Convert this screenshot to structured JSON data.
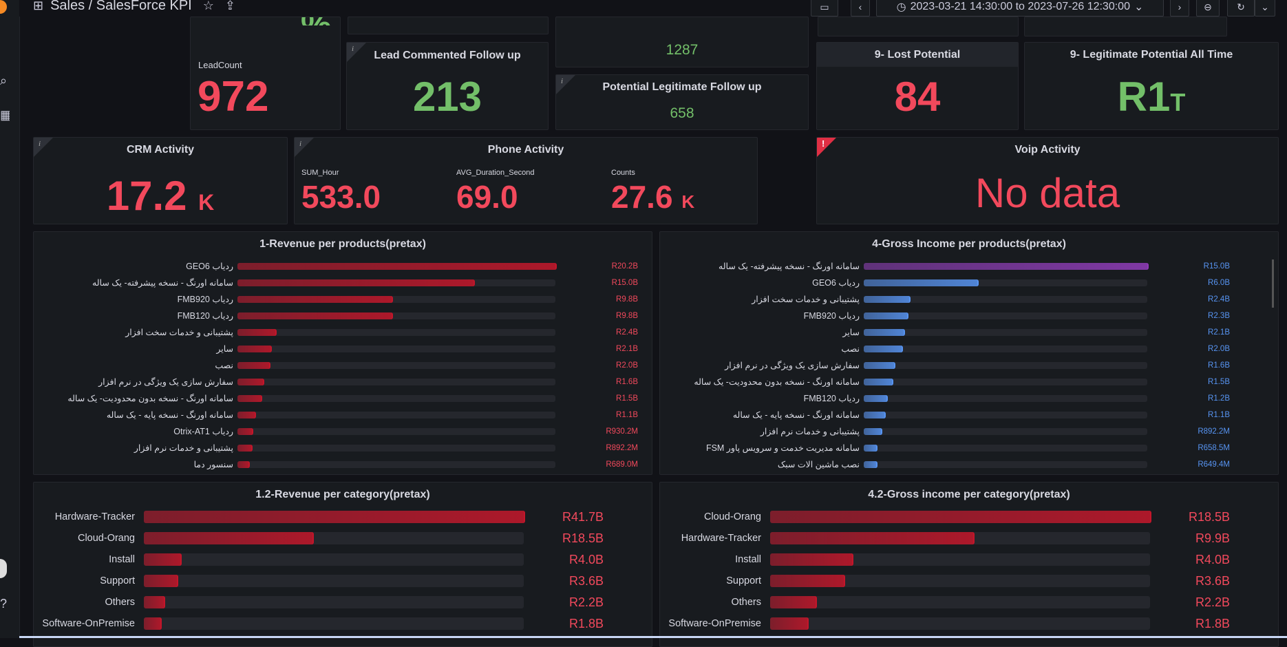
{
  "nav": {
    "breadcrumb": "Sales / SalesForce KPI",
    "time_range": "2023-03-21 14:30:00 to 2023-07-26 12:30:00"
  },
  "colors": {
    "red": "#f2495c",
    "green": "#73bf69",
    "purple": "#8f3bb8",
    "blue": "#5794f2",
    "bar_red": "#c4162a"
  },
  "panels": {
    "lead_count": {
      "label": "LeadCount",
      "value": "972"
    },
    "lead_commented": {
      "title": "Lead Commented Follow up",
      "value": "213"
    },
    "top_small": {
      "value": "1287"
    },
    "potential_legit": {
      "title": "Potential Legitimate Follow up",
      "value": "658"
    },
    "lost_potential": {
      "title": "9- Lost Potential",
      "value": "84"
    },
    "legit_all_time": {
      "title": "9- Legitimate Potential All Time",
      "value": "R1",
      "unit": "T"
    },
    "crm": {
      "title": "CRM Activity",
      "value": "17.2",
      "unit": "K"
    },
    "phone": {
      "title": "Phone Activity",
      "stats": [
        {
          "label": "SUM_Hour",
          "value": "533.0",
          "unit": ""
        },
        {
          "label": "AVG_Duration_Second",
          "value": "69.0",
          "unit": ""
        },
        {
          "label": "Counts",
          "value": "27.6",
          "unit": "K"
        }
      ]
    },
    "voip": {
      "title": "Voip Activity",
      "value": "No data"
    }
  },
  "chart_data": [
    {
      "type": "bar",
      "title": "1-Revenue per products(pretax)",
      "color": "#c4162a",
      "value_color": "#f2495c",
      "max": 20.2,
      "categories": [
        "GEO6 ردیاب",
        "سامانه اورنگ - نسخه پیشرفته- یک ساله",
        "FMB920 ردیاب",
        "FMB120 ردیاب",
        "پشتیبانی و خدمات سخت افزار",
        "سایر",
        "نصب",
        "سفارش سازی یک ویژگی در نرم افزار",
        "سامانه اورنگ - نسخه بدون محدودیت- یک ساله",
        "سامانه اورنگ - نسخه پایه - یک ساله",
        "Otrix-AT1 ردیاب",
        "پشتیبانی و خدمات نرم افزار",
        "سنسور دما"
      ],
      "values": [
        20.2,
        15.0,
        9.8,
        9.8,
        2.4,
        2.1,
        2.0,
        1.6,
        1.5,
        1.1,
        0.9302,
        0.8922,
        0.689
      ],
      "labels": [
        "R20.2B",
        "R15.0B",
        "R9.8B",
        "R9.8B",
        "R2.4B",
        "R2.1B",
        "R2.0B",
        "R1.6B",
        "R1.5B",
        "R1.1B",
        "R930.2M",
        "R892.2M",
        "R689.0M"
      ]
    },
    {
      "type": "bar",
      "title": "4-Gross Income per products(pretax)",
      "color": "#5794f2",
      "value_color": "#5794f2",
      "max": 15.0,
      "categories": [
        "سامانه اورنگ - نسخه پیشرفته- یک ساله",
        "GEO6 ردیاب",
        "پشتیبانی و خدمات سخت افزار",
        "FMB920 ردیاب",
        "سایر",
        "نصب",
        "سفارش سازی یک ویژگی در نرم افزار",
        "سامانه اورنگ - نسخه بدون محدودیت- یک ساله",
        "FMB120 ردیاب",
        "سامانه اورنگ - نسخه پایه - یک ساله",
        "پشتیبانی و خدمات نرم افزار",
        "FSM سامانه مدیریت خدمت و سرویس پاور",
        "نصب ماشین الات سبک"
      ],
      "values": [
        15.0,
        6.0,
        2.4,
        2.3,
        2.1,
        2.0,
        1.6,
        1.5,
        1.2,
        1.1,
        0.8922,
        0.6585,
        0.6494
      ],
      "labels": [
        "R15.0B",
        "R6.0B",
        "R2.4B",
        "R2.3B",
        "R2.1B",
        "R2.0B",
        "R1.6B",
        "R1.5B",
        "R1.2B",
        "R1.1B",
        "R892.2M",
        "R658.5M",
        "R649.4M"
      ]
    },
    {
      "type": "bar",
      "title": "1.2-Revenue per category(pretax)",
      "color": "#c4162a",
      "value_color": "#f2495c",
      "max": 41.7,
      "categories": [
        "Hardware-Tracker",
        "Cloud-Orang",
        "Install",
        "Support",
        "Others",
        "Software-OnPremise"
      ],
      "values": [
        41.7,
        18.5,
        4.0,
        3.6,
        2.2,
        1.8
      ],
      "labels": [
        "R41.7B",
        "R18.5B",
        "R4.0B",
        "R3.6B",
        "R2.2B",
        "R1.8B"
      ]
    },
    {
      "type": "bar",
      "title": "4.2-Gross income per category(pretax)",
      "color": "#c4162a",
      "value_color": "#f2495c",
      "max": 18.5,
      "categories": [
        "Cloud-Orang",
        "Hardware-Tracker",
        "Install",
        "Support",
        "Others",
        "Software-OnPremise"
      ],
      "values": [
        18.5,
        9.9,
        4.0,
        3.6,
        2.2,
        1.8
      ],
      "labels": [
        "R18.5B",
        "R9.9B",
        "R4.0B",
        "R3.6B",
        "R2.2B",
        "R1.8B"
      ]
    }
  ]
}
